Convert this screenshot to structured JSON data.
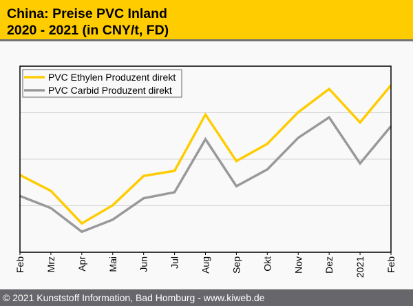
{
  "title": {
    "line1": "China: Preise PVC Inland",
    "line2": "2020 - 2021 (in CNY/t, FD)"
  },
  "footer": {
    "text": "© 2021 Kunststoff Information, Bad Homburg - www.kiweb.de"
  },
  "colors": {
    "title_band": "#ffcc00",
    "ethylen": "#ffcc00",
    "carbid": "#999999",
    "footer": "#67676b"
  },
  "chart_data": {
    "type": "line",
    "title": "China: Preise PVC Inland 2020 - 2021 (in CNY/t, FD)",
    "xlabel": "",
    "ylabel": "",
    "y_units_note": "Y-axis has no printed tick labels; values expressed in gridline-band units (0 = axis bottom, 4 = plot top).",
    "x": [
      "Feb",
      "Mrz",
      "Apr",
      "Mai",
      "Jun",
      "Jul",
      "Aug",
      "Sep",
      "Okt",
      "Nov",
      "Dez",
      "2021",
      "Feb"
    ],
    "ylim": [
      0,
      4
    ],
    "gridlines": [
      1,
      2,
      3
    ],
    "grid": true,
    "legend_position": "top-left",
    "series": [
      {
        "name": "PVC Ethylen Produzent direkt",
        "color": "#ffcc00",
        "values": [
          1.66,
          1.32,
          0.62,
          1.01,
          1.64,
          1.75,
          2.96,
          1.96,
          2.33,
          3.01,
          3.51,
          2.79,
          3.59
        ]
      },
      {
        "name": "PVC Carbid Produzent direkt",
        "color": "#999999",
        "values": [
          1.21,
          0.95,
          0.44,
          0.7,
          1.16,
          1.29,
          2.43,
          1.42,
          1.78,
          2.46,
          2.9,
          1.91,
          2.71
        ]
      }
    ]
  }
}
